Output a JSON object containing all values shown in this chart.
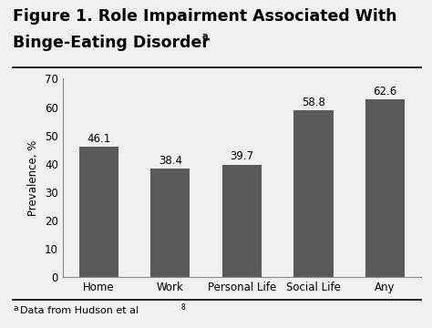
{
  "title_line1": "Figure 1. Role Impairment Associated With",
  "title_line2": "Binge-Eating Disorder",
  "title_superscript": "a",
  "categories": [
    "Home",
    "Work",
    "Personal Life",
    "Social Life",
    "Any"
  ],
  "values": [
    46.1,
    38.4,
    39.7,
    58.8,
    62.6
  ],
  "bar_color": "#595959",
  "ylabel": "Prevalence, %",
  "ylim": [
    0,
    70
  ],
  "yticks": [
    0,
    10,
    20,
    30,
    40,
    50,
    60,
    70
  ],
  "footnote_super": "a",
  "footnote_text": "Data from Hudson et al",
  "footnote_ref": "8",
  "background_color": "#f0f0f0",
  "bar_label_fontsize": 8.5,
  "axis_fontsize": 8.5,
  "title_fontsize": 12.5,
  "footnote_fontsize": 8
}
